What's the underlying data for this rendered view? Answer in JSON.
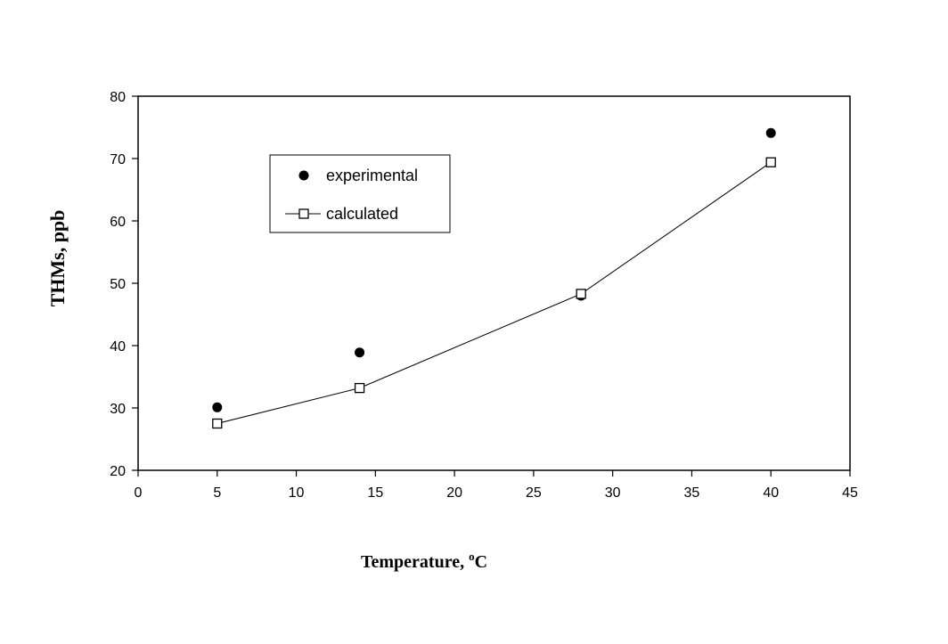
{
  "chart_data": {
    "type": "scatter",
    "title": "",
    "xlabel": "Temperature, ",
    "xlabel_sup": "o",
    "xlabel_unit": "C",
    "ylabel": "THMs, ppb",
    "xlim": [
      0,
      45
    ],
    "ylim": [
      20,
      80
    ],
    "x_ticks": [
      0,
      5,
      10,
      15,
      20,
      25,
      30,
      35,
      40,
      45
    ],
    "y_ticks": [
      20,
      30,
      40,
      50,
      60,
      70,
      80
    ],
    "grid": false,
    "legend_position": "top-left",
    "series": [
      {
        "name": "experimental",
        "marker": "filled-circle",
        "line": false,
        "points": [
          [
            5,
            30.1
          ],
          [
            14,
            38.9
          ],
          [
            28,
            48.0
          ],
          [
            40,
            74.1
          ]
        ]
      },
      {
        "name": "calculated",
        "marker": "open-square",
        "line": true,
        "points": [
          [
            5,
            27.5
          ],
          [
            14,
            33.2
          ],
          [
            28,
            48.3
          ],
          [
            40,
            69.4
          ]
        ]
      }
    ]
  }
}
